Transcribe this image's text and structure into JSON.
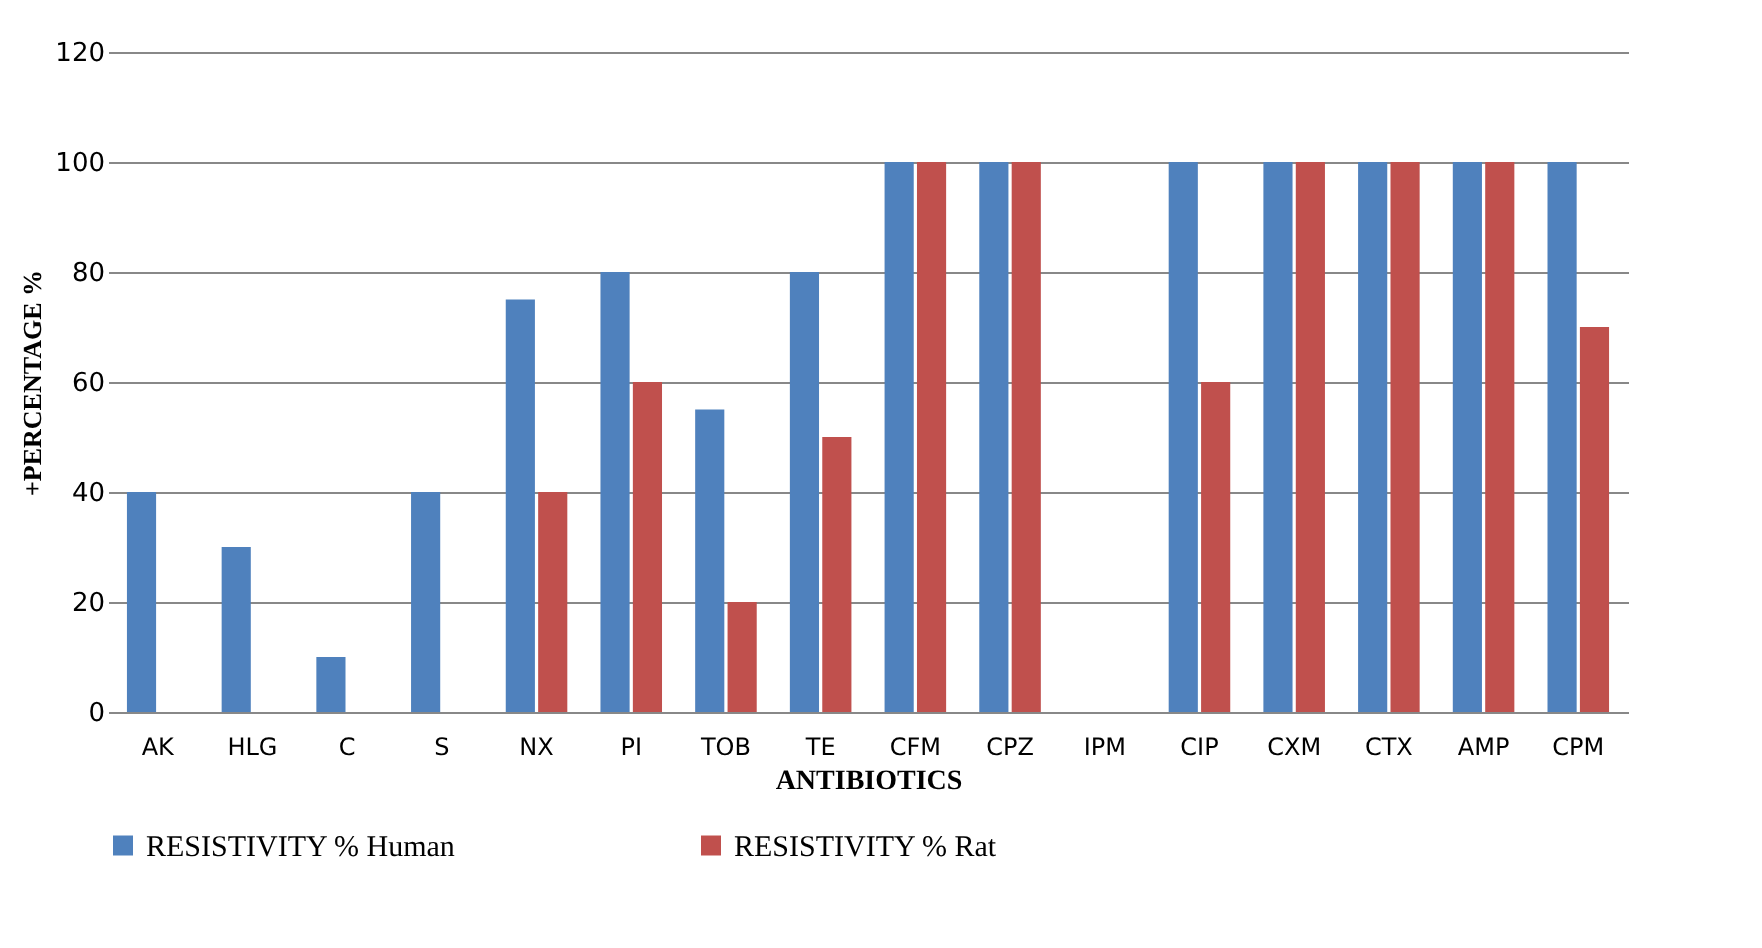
{
  "chart_data": {
    "type": "bar",
    "xlabel": "ANTIBIOTICS",
    "ylabel": "+PERCENTAGE %",
    "categories": [
      "AK",
      "HLG",
      "C",
      "S",
      "NX",
      "PI",
      "TOB",
      "TE",
      "CFM",
      "CPZ",
      "IPM",
      "CIP",
      "CXM",
      "CTX",
      "AMP",
      "CPM"
    ],
    "series": [
      {
        "name": "RESISTIVITY % Human",
        "color": "#4f81bd",
        "values": [
          40,
          30,
          10,
          40,
          75,
          80,
          55,
          80,
          100,
          100,
          0,
          100,
          100,
          100,
          100,
          100
        ]
      },
      {
        "name": "RESISTIVITY % Rat",
        "color": "#c0504d",
        "values": [
          0,
          0,
          0,
          0,
          40,
          60,
          20,
          50,
          100,
          100,
          0,
          60,
          100,
          100,
          100,
          70
        ]
      }
    ],
    "ylim": [
      0,
      120
    ],
    "yticks": [
      0,
      20,
      40,
      60,
      80,
      100,
      120
    ],
    "grid": "y",
    "legend": "bottom"
  }
}
